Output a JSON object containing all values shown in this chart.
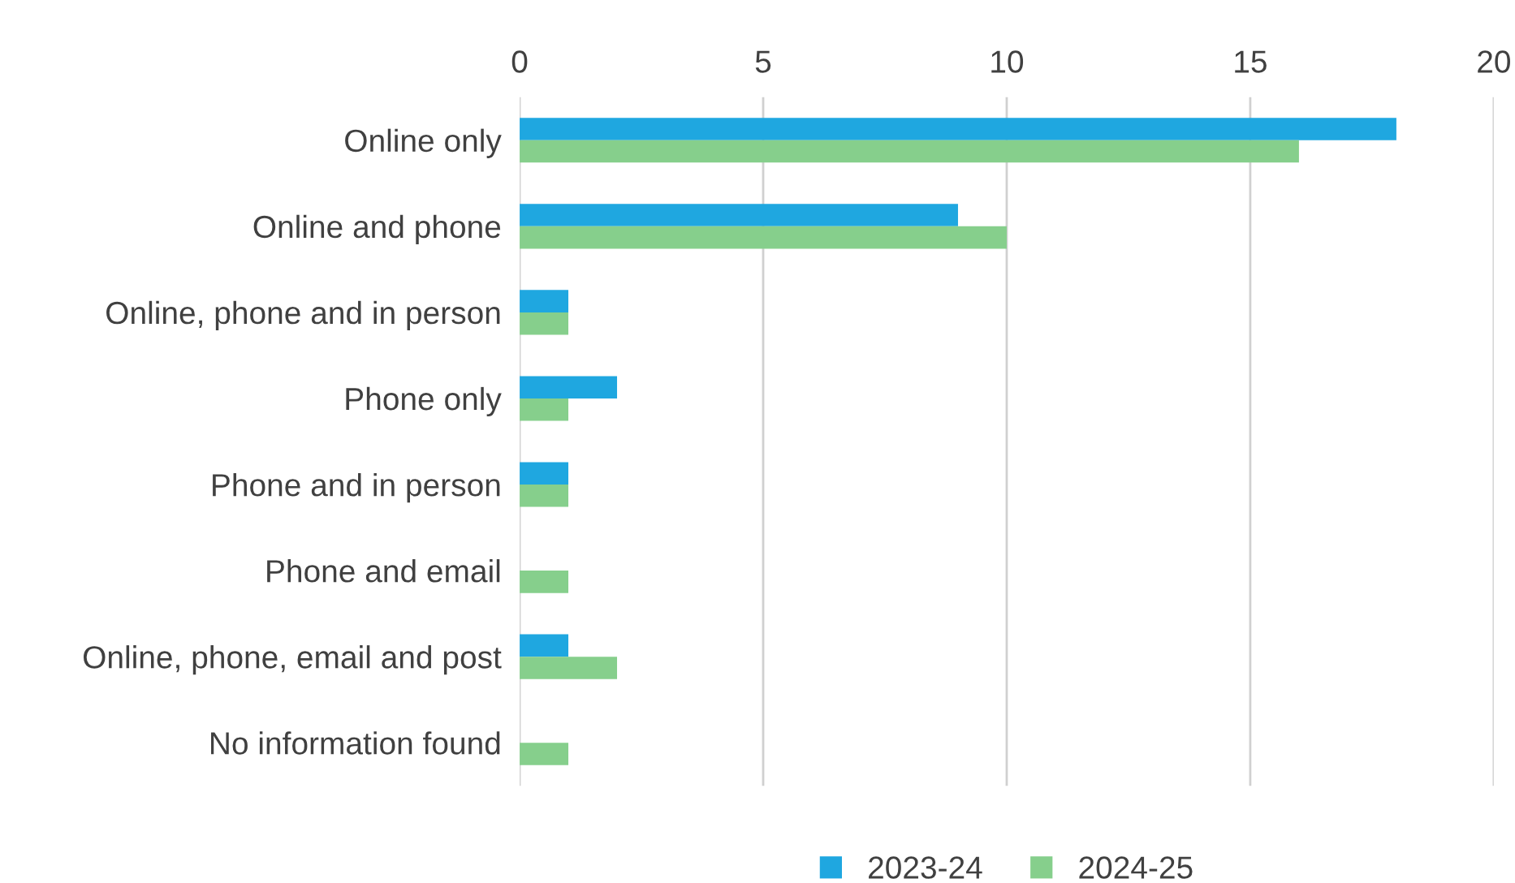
{
  "chart_data": {
    "type": "bar",
    "orientation": "horizontal",
    "categories": [
      "Online only",
      "Online and phone",
      "Online, phone and in person",
      "Phone only",
      "Phone and in person",
      "Phone and email",
      "Online, phone, email and post",
      "No information found"
    ],
    "series": [
      {
        "name": "2023-24",
        "color": "#1fa7e0",
        "values": [
          18,
          9,
          1,
          2,
          1,
          0,
          1,
          0
        ]
      },
      {
        "name": "2024-25",
        "color": "#86cf8c",
        "values": [
          16,
          10,
          1,
          1,
          1,
          1,
          2,
          1
        ]
      }
    ],
    "xlim": [
      0,
      20
    ],
    "xticks": [
      0,
      5,
      10,
      15,
      20
    ],
    "grid": "x",
    "legend": "bottom"
  }
}
